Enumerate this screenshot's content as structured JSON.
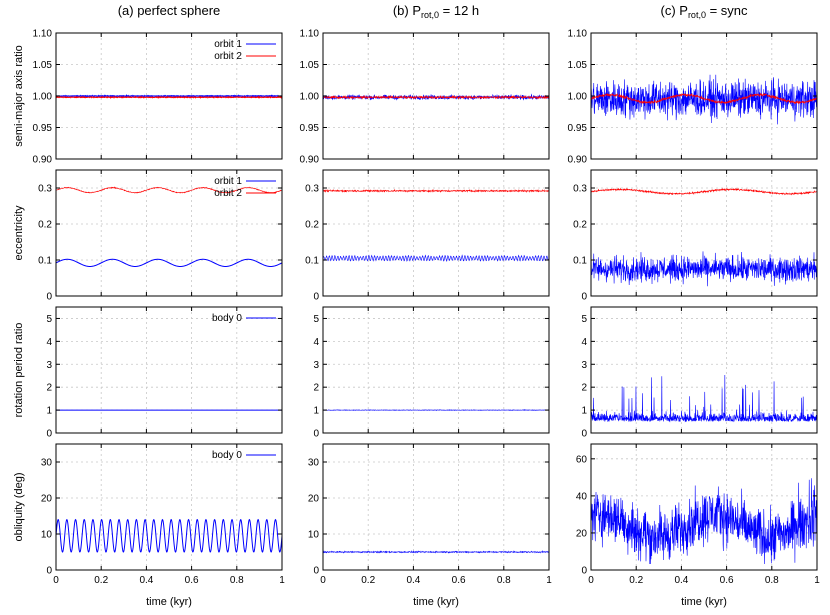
{
  "columns": [
    {
      "title": "(a) perfect sphere"
    },
    {
      "title": "(b) P",
      "title_sub": "rot,0",
      "title_tail": " = 12 h"
    },
    {
      "title": "(c) P",
      "title_sub": "rot,0",
      "title_tail": " = sync"
    }
  ],
  "row_labels": [
    "semi-major axis ratio",
    "eccentricity",
    "rotation period ratio",
    "obliquity (deg)"
  ],
  "xlabel": "time (kyr)",
  "colors": {
    "orbit1": "#0000ff",
    "orbit2": "#ff0000",
    "body0": "#0000ff",
    "grid": "#c8c8c8"
  },
  "chart_data": [
    {
      "type": "line",
      "panel": "a-1",
      "xlim": [
        0,
        1
      ],
      "ylim": [
        0.9,
        1.1
      ],
      "xticks": [
        "0",
        "0.2",
        "0.4",
        "0.6",
        "0.8",
        "1"
      ],
      "yticks": [
        "0.90",
        "0.95",
        "1.00",
        "1.05",
        "1.10"
      ],
      "ylabel": "semi-major axis ratio",
      "legend": [
        "orbit 1",
        "orbit 2"
      ],
      "legend_position": "top-right",
      "series": [
        {
          "name": "orbit 1",
          "color": "#0000ff",
          "pattern": "constant",
          "value": 1.0,
          "noise": 0.0005
        },
        {
          "name": "orbit 2",
          "color": "#ff0000",
          "pattern": "constant",
          "value": 0.998,
          "noise": 0.0005
        }
      ]
    },
    {
      "type": "line",
      "panel": "b-1",
      "xlim": [
        0,
        1
      ],
      "ylim": [
        0.9,
        1.1
      ],
      "xticks": [
        "0",
        "0.2",
        "0.4",
        "0.6",
        "0.8",
        "1"
      ],
      "yticks": [
        "0.90",
        "0.95",
        "1.00",
        "1.05",
        "1.10"
      ],
      "series": [
        {
          "name": "orbit 1",
          "color": "#0000ff",
          "pattern": "noise",
          "value": 0.998,
          "noise": 0.003
        },
        {
          "name": "orbit 2",
          "color": "#ff0000",
          "pattern": "noise",
          "value": 0.998,
          "noise": 0.0015
        }
      ]
    },
    {
      "type": "line",
      "panel": "c-1",
      "xlim": [
        0,
        1
      ],
      "ylim": [
        0.9,
        1.1
      ],
      "xticks": [
        "0",
        "0.2",
        "0.4",
        "0.6",
        "0.8",
        "1"
      ],
      "yticks": [
        "0.90",
        "0.95",
        "1.00",
        "1.05",
        "1.10"
      ],
      "series": [
        {
          "name": "orbit 1",
          "color": "#0000ff",
          "pattern": "noise",
          "value": 0.995,
          "noise": 0.025
        },
        {
          "name": "orbit 2",
          "color": "#ff0000",
          "pattern": "wave",
          "value": 0.996,
          "amp": 0.006,
          "cycles": 3,
          "noise": 0.002
        }
      ]
    },
    {
      "type": "line",
      "panel": "a-2",
      "xlim": [
        0,
        1
      ],
      "ylim": [
        0,
        0.35
      ],
      "xticks": [
        "0",
        "0.2",
        "0.4",
        "0.6",
        "0.8",
        "1"
      ],
      "yticks": [
        "0",
        "0.1",
        "0.2",
        "0.3"
      ],
      "ylabel": "eccentricity",
      "legend": [
        "orbit 1",
        "orbit 2"
      ],
      "legend_position": "top-right",
      "series": [
        {
          "name": "orbit 1",
          "color": "#0000ff",
          "pattern": "wave",
          "value": 0.092,
          "amp": 0.01,
          "cycles": 5,
          "noise": 0.0
        },
        {
          "name": "orbit 2",
          "color": "#ff0000",
          "pattern": "wave",
          "value": 0.294,
          "amp": 0.007,
          "cycles": 5,
          "noise": 0.001
        }
      ]
    },
    {
      "type": "line",
      "panel": "b-2",
      "xlim": [
        0,
        1
      ],
      "ylim": [
        0,
        0.35
      ],
      "xticks": [
        "0",
        "0.2",
        "0.4",
        "0.6",
        "0.8",
        "1"
      ],
      "yticks": [
        "0",
        "0.1",
        "0.2",
        "0.3"
      ],
      "series": [
        {
          "name": "orbit 1",
          "color": "#0000ff",
          "pattern": "fastwave",
          "value": 0.105,
          "amp": 0.007,
          "cycles": 80,
          "noise": 0.001
        },
        {
          "name": "orbit 2",
          "color": "#ff0000",
          "pattern": "noise",
          "value": 0.292,
          "noise": 0.002
        }
      ]
    },
    {
      "type": "line",
      "panel": "c-2",
      "xlim": [
        0,
        1
      ],
      "ylim": [
        0,
        0.35
      ],
      "xticks": [
        "0",
        "0.2",
        "0.4",
        "0.6",
        "0.8",
        "1"
      ],
      "yticks": [
        "0",
        "0.1",
        "0.2",
        "0.3"
      ],
      "series": [
        {
          "name": "orbit 1",
          "color": "#0000ff",
          "pattern": "noise",
          "value": 0.075,
          "noise": 0.03
        },
        {
          "name": "orbit 2",
          "color": "#ff0000",
          "pattern": "wave",
          "value": 0.29,
          "amp": 0.006,
          "cycles": 2,
          "noise": 0.002
        }
      ]
    },
    {
      "type": "line",
      "panel": "a-3",
      "xlim": [
        0,
        1
      ],
      "ylim": [
        0,
        5.5
      ],
      "xticks": [
        "0",
        "0.2",
        "0.4",
        "0.6",
        "0.8",
        "1"
      ],
      "yticks": [
        "0",
        "1",
        "2",
        "3",
        "4",
        "5"
      ],
      "ylabel": "rotation period ratio",
      "legend": [
        "body 0"
      ],
      "legend_position": "top-right",
      "series": [
        {
          "name": "body 0",
          "color": "#0000ff",
          "pattern": "constant",
          "value": 1.0,
          "noise": 0.0
        }
      ]
    },
    {
      "type": "line",
      "panel": "b-3",
      "xlim": [
        0,
        1
      ],
      "ylim": [
        0,
        5.5
      ],
      "xticks": [
        "0",
        "0.2",
        "0.4",
        "0.6",
        "0.8",
        "1"
      ],
      "yticks": [
        "0",
        "1",
        "2",
        "3",
        "4",
        "5"
      ],
      "series": [
        {
          "name": "body 0",
          "color": "#0000ff",
          "pattern": "noise",
          "value": 1.0,
          "noise": 0.01
        }
      ]
    },
    {
      "type": "line",
      "panel": "c-3",
      "xlim": [
        0,
        1
      ],
      "ylim": [
        0,
        5.5
      ],
      "xticks": [
        "0",
        "0.2",
        "0.4",
        "0.6",
        "0.8",
        "1"
      ],
      "yticks": [
        "0",
        "1",
        "2",
        "3",
        "4",
        "5"
      ],
      "series": [
        {
          "name": "body 0",
          "color": "#0000ff",
          "pattern": "spiky",
          "value": 1.0,
          "noise": 0.3,
          "max": 3.0
        }
      ]
    },
    {
      "type": "line",
      "panel": "a-4",
      "xlim": [
        0,
        1
      ],
      "ylim": [
        0,
        35
      ],
      "xticks": [
        "0",
        "0.2",
        "0.4",
        "0.6",
        "0.8",
        "1"
      ],
      "yticks": [
        "0",
        "10",
        "20",
        "30"
      ],
      "ylabel": "obliquity (deg)",
      "legend": [
        "body 0"
      ],
      "legend_position": "top-right",
      "series": [
        {
          "name": "body 0",
          "color": "#0000ff",
          "pattern": "wave",
          "value": 9.5,
          "amp": 4.5,
          "cycles": 26,
          "noise": 0.0
        }
      ]
    },
    {
      "type": "line",
      "panel": "b-4",
      "xlim": [
        0,
        1
      ],
      "ylim": [
        0,
        35
      ],
      "xticks": [
        "0",
        "0.2",
        "0.4",
        "0.6",
        "0.8",
        "1"
      ],
      "yticks": [
        "0",
        "10",
        "20",
        "30"
      ],
      "series": [
        {
          "name": "body 0",
          "color": "#0000ff",
          "pattern": "noise",
          "value": 5.0,
          "noise": 0.15
        }
      ]
    },
    {
      "type": "line",
      "panel": "c-4",
      "xlim": [
        0,
        1
      ],
      "ylim": [
        0,
        68
      ],
      "xticks": [
        "0",
        "0.2",
        "0.4",
        "0.6",
        "0.8",
        "1"
      ],
      "yticks": [
        "0",
        "20",
        "40",
        "60"
      ],
      "series": [
        {
          "name": "body 0",
          "color": "#0000ff",
          "pattern": "noisy-wide",
          "value": 24,
          "noise": 12,
          "max": 66
        }
      ]
    }
  ]
}
